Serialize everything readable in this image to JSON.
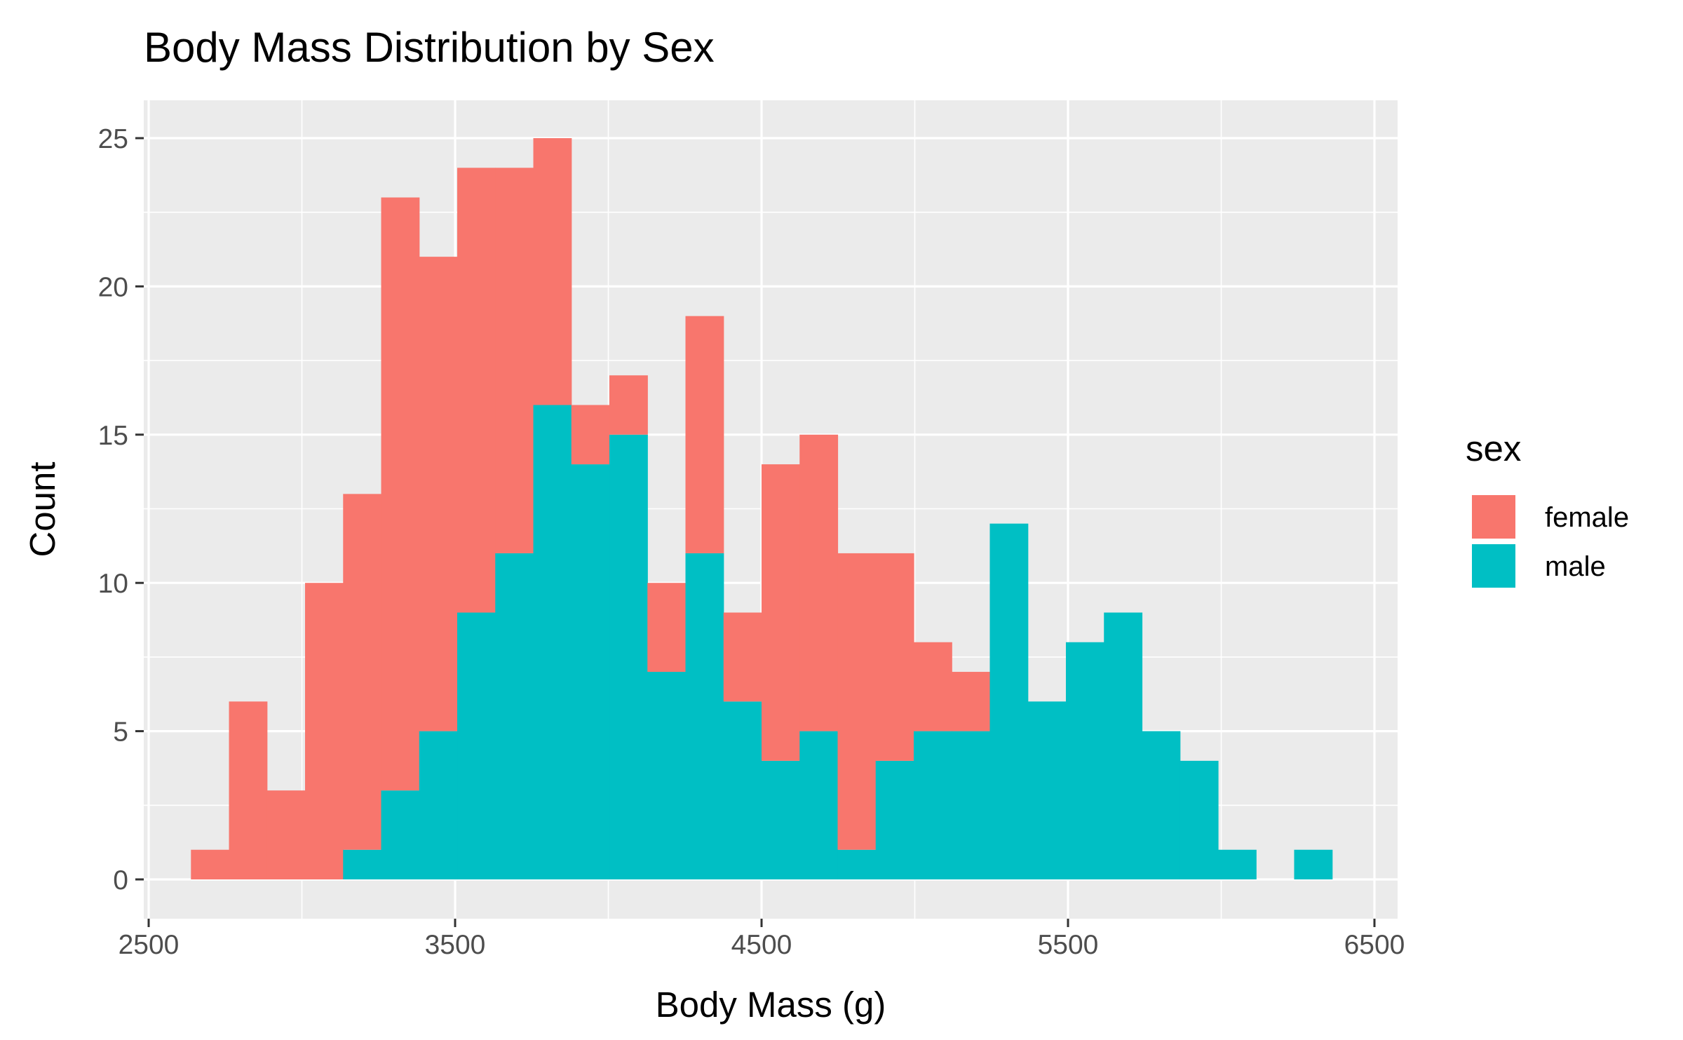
{
  "chart_data": {
    "type": "bar",
    "title": "Body Mass Distribution by Sex",
    "xlabel": "Body Mass (g)",
    "ylabel": "Count",
    "xlim": [
      2500,
      6500
    ],
    "ylim": [
      0,
      25
    ],
    "x_ticks": [
      2500,
      3500,
      4500,
      5500,
      6500
    ],
    "y_ticks": [
      0,
      5,
      10,
      15,
      20,
      25
    ],
    "bin_width": 124.14,
    "stacked": true,
    "grid": true,
    "legend": {
      "title": "sex",
      "placement": "right"
    },
    "x": [
      2700,
      2824.14,
      2948.28,
      3072.41,
      3196.55,
      3320.69,
      3444.83,
      3568.97,
      3693.1,
      3817.24,
      3941.38,
      4065.52,
      4189.66,
      4313.79,
      4437.93,
      4562.07,
      4686.21,
      4810.34,
      4934.48,
      5058.62,
      5182.76,
      5306.9,
      5431.03,
      5555.17,
      5679.31,
      5803.45,
      5927.59,
      6051.72,
      6175.86,
      6300
    ],
    "series": [
      {
        "name": "female",
        "color": "#F8766D",
        "values": [
          1,
          6,
          3,
          10,
          12,
          20,
          16,
          15,
          13,
          9,
          2,
          2,
          3,
          8,
          3,
          10,
          10,
          10,
          7,
          3,
          2,
          0,
          0,
          0,
          0,
          0,
          0,
          0,
          0,
          0
        ]
      },
      {
        "name": "male",
        "color": "#00BFC4",
        "values": [
          0,
          0,
          0,
          0,
          1,
          3,
          5,
          9,
          11,
          16,
          14,
          15,
          7,
          11,
          6,
          4,
          5,
          1,
          4,
          5,
          5,
          12,
          6,
          8,
          9,
          5,
          4,
          1,
          0,
          1
        ]
      }
    ]
  }
}
